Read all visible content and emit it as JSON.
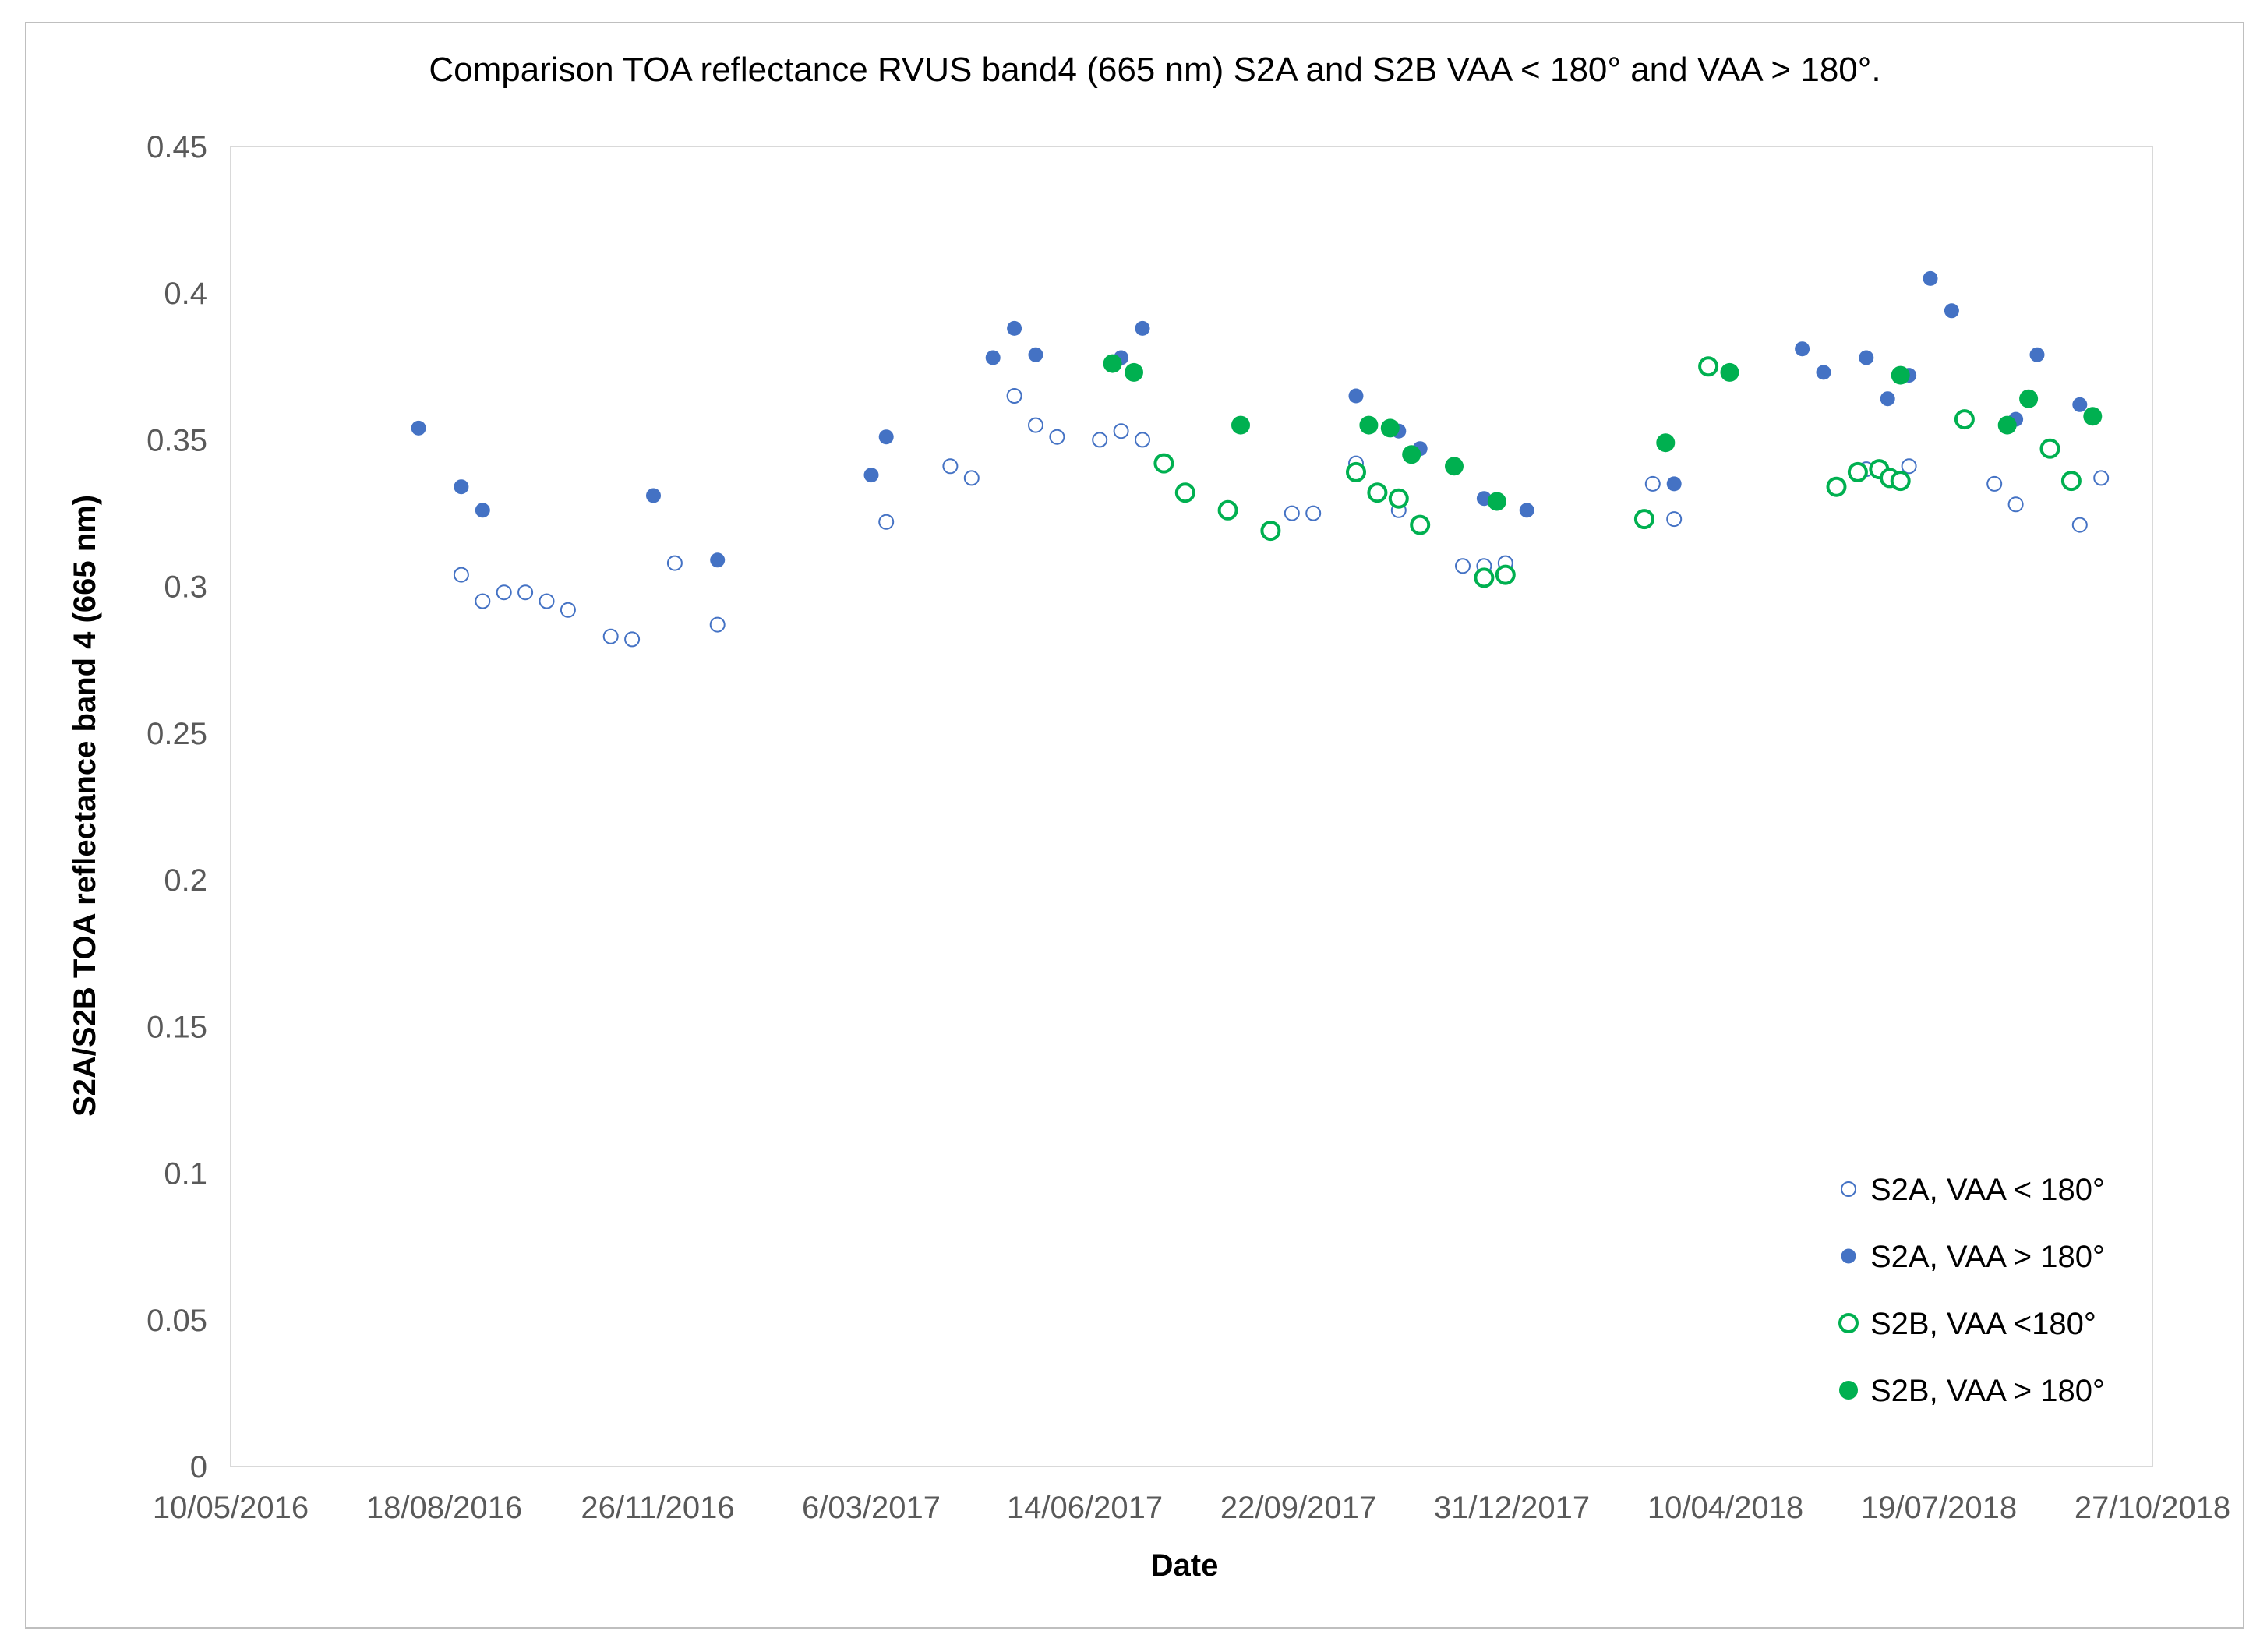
{
  "chart_data": {
    "type": "scatter",
    "title": "Comparison TOA reflectance RVUS band4 (665 nm) S2A and S2B VAA < 180° and VAA > 180°.",
    "xlabel": "Date",
    "ylabel": "S2A/S2B TOA reflectance band 4 (665 nm)",
    "xlim": [
      "2016-05-10",
      "2018-10-27"
    ],
    "ylim": [
      0,
      0.45
    ],
    "x_ticks": [
      "10/05/2016",
      "18/08/2016",
      "26/11/2016",
      "6/03/2017",
      "14/06/2017",
      "22/09/2017",
      "31/12/2017",
      "10/04/2018",
      "19/07/2018",
      "27/10/2018"
    ],
    "y_ticks": [
      "0",
      "0.05",
      "0.1",
      "0.15",
      "0.2",
      "0.25",
      "0.3",
      "0.35",
      "0.4",
      "0.45"
    ],
    "grid": false,
    "legend_position": "bottom-right",
    "series": [
      {
        "name": "S2A, VAA < 180°",
        "color": "#4472c4",
        "marker": "hollow-small",
        "points": [
          [
            "2016-08-26",
            0.304
          ],
          [
            "2016-09-05",
            0.295
          ],
          [
            "2016-09-15",
            0.298
          ],
          [
            "2016-09-25",
            0.298
          ],
          [
            "2016-10-05",
            0.295
          ],
          [
            "2016-10-15",
            0.292
          ],
          [
            "2016-11-04",
            0.283
          ],
          [
            "2016-11-14",
            0.282
          ],
          [
            "2016-12-04",
            0.308
          ],
          [
            "2016-12-24",
            0.287
          ],
          [
            "2017-03-13",
            0.322
          ],
          [
            "2017-04-12",
            0.341
          ],
          [
            "2017-04-22",
            0.337
          ],
          [
            "2017-05-12",
            0.365
          ],
          [
            "2017-05-22",
            0.355
          ],
          [
            "2017-06-01",
            0.351
          ],
          [
            "2017-06-21",
            0.35
          ],
          [
            "2017-07-01",
            0.353
          ],
          [
            "2017-07-11",
            0.35
          ],
          [
            "2017-09-19",
            0.325
          ],
          [
            "2017-09-29",
            0.325
          ],
          [
            "2017-10-19",
            0.342
          ],
          [
            "2017-10-29",
            0.332
          ],
          [
            "2017-11-08",
            0.326
          ],
          [
            "2017-12-08",
            0.307
          ],
          [
            "2017-12-18",
            0.307
          ],
          [
            "2017-12-28",
            0.308
          ],
          [
            "2018-03-07",
            0.335
          ],
          [
            "2018-03-17",
            0.323
          ],
          [
            "2018-06-15",
            0.34
          ],
          [
            "2018-06-25",
            0.338
          ],
          [
            "2018-07-05",
            0.341
          ],
          [
            "2018-08-14",
            0.335
          ],
          [
            "2018-08-24",
            0.328
          ],
          [
            "2018-09-23",
            0.321
          ],
          [
            "2018-10-03",
            0.337
          ]
        ]
      },
      {
        "name": "S2A, VAA > 180°",
        "color": "#4472c4",
        "marker": "filled-small",
        "points": [
          [
            "2016-08-06",
            0.354
          ],
          [
            "2016-08-26",
            0.334
          ],
          [
            "2016-09-05",
            0.326
          ],
          [
            "2016-11-24",
            0.331
          ],
          [
            "2016-12-24",
            0.309
          ],
          [
            "2017-03-06",
            0.338
          ],
          [
            "2017-03-13",
            0.351
          ],
          [
            "2017-05-02",
            0.378
          ],
          [
            "2017-05-12",
            0.388
          ],
          [
            "2017-05-22",
            0.379
          ],
          [
            "2017-07-01",
            0.378
          ],
          [
            "2017-07-11",
            0.388
          ],
          [
            "2017-10-19",
            0.365
          ],
          [
            "2017-11-08",
            0.353
          ],
          [
            "2017-11-18",
            0.347
          ],
          [
            "2017-12-18",
            0.33
          ],
          [
            "2018-01-07",
            0.326
          ],
          [
            "2018-03-17",
            0.335
          ],
          [
            "2018-05-16",
            0.381
          ],
          [
            "2018-05-26",
            0.373
          ],
          [
            "2018-06-15",
            0.378
          ],
          [
            "2018-06-25",
            0.364
          ],
          [
            "2018-07-05",
            0.372
          ],
          [
            "2018-07-15",
            0.405
          ],
          [
            "2018-07-25",
            0.394
          ],
          [
            "2018-08-24",
            0.357
          ],
          [
            "2018-09-03",
            0.379
          ],
          [
            "2018-09-23",
            0.362
          ]
        ]
      },
      {
        "name": "S2B, VAA <180°",
        "color": "#00b050",
        "marker": "hollow",
        "points": [
          [
            "2017-07-21",
            0.342
          ],
          [
            "2017-07-31",
            0.332
          ],
          [
            "2017-08-20",
            0.326
          ],
          [
            "2017-09-09",
            0.319
          ],
          [
            "2017-10-19",
            0.339
          ],
          [
            "2017-10-29",
            0.332
          ],
          [
            "2017-11-08",
            0.33
          ],
          [
            "2017-11-18",
            0.321
          ],
          [
            "2017-12-18",
            0.303
          ],
          [
            "2017-12-28",
            0.304
          ],
          [
            "2018-03-03",
            0.323
          ],
          [
            "2018-04-02",
            0.375
          ],
          [
            "2018-06-01",
            0.334
          ],
          [
            "2018-06-11",
            0.339
          ],
          [
            "2018-06-21",
            0.34
          ],
          [
            "2018-06-26",
            0.337
          ],
          [
            "2018-07-01",
            0.336
          ],
          [
            "2018-07-31",
            0.357
          ],
          [
            "2018-09-09",
            0.347
          ],
          [
            "2018-09-19",
            0.336
          ]
        ]
      },
      {
        "name": "S2B, VAA > 180°",
        "color": "#00b050",
        "marker": "filled",
        "points": [
          [
            "2017-06-27",
            0.376
          ],
          [
            "2017-07-07",
            0.373
          ],
          [
            "2017-08-26",
            0.355
          ],
          [
            "2017-10-25",
            0.355
          ],
          [
            "2017-11-04",
            0.354
          ],
          [
            "2017-11-14",
            0.345
          ],
          [
            "2017-12-04",
            0.341
          ],
          [
            "2017-12-24",
            0.329
          ],
          [
            "2018-03-13",
            0.349
          ],
          [
            "2018-04-12",
            0.373
          ],
          [
            "2018-07-01",
            0.372
          ],
          [
            "2018-08-20",
            0.355
          ],
          [
            "2018-08-30",
            0.364
          ],
          [
            "2018-09-29",
            0.358
          ]
        ]
      }
    ]
  }
}
